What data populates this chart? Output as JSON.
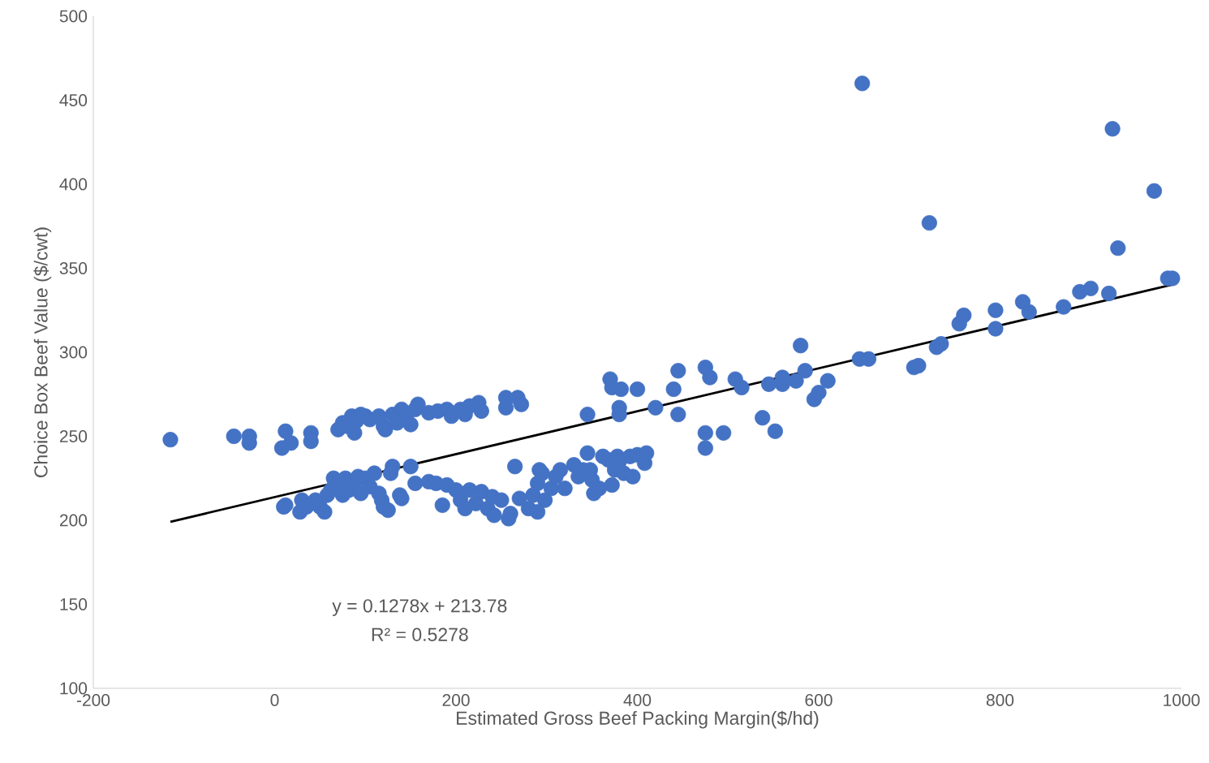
{
  "chart_data": {
    "type": "scatter",
    "xlabel": "Estimated Gross Beef Packing Margin($/hd)",
    "ylabel": "Choice Box Beef Value ($/cwt)",
    "annotations": [
      "y = 0.1278x + 213.78",
      "R² = 0.5278"
    ],
    "xlim": [
      -200,
      1000
    ],
    "xticks": [
      -200,
      0,
      200,
      400,
      600,
      800,
      1000
    ],
    "ylim": [
      100,
      500
    ],
    "yticks": [
      100,
      150,
      200,
      250,
      300,
      350,
      400,
      450,
      500
    ],
    "grid": false,
    "series": [
      {
        "color": "#4472c4",
        "marker": "circle",
        "x": [
          -115,
          -45,
          -28,
          -28,
          8,
          12,
          18,
          40,
          40,
          70,
          75,
          80,
          85,
          88,
          90,
          95,
          100,
          105,
          115,
          120,
          122,
          130,
          135,
          140,
          145,
          150,
          155,
          158,
          170,
          180,
          190,
          195,
          205,
          210,
          215,
          225,
          228,
          255,
          255,
          268,
          272,
          10,
          12,
          28,
          30,
          35,
          45,
          50,
          55,
          58,
          62,
          65,
          70,
          75,
          78,
          82,
          88,
          92,
          95,
          100,
          105,
          110,
          115,
          118,
          120,
          125,
          128,
          130,
          138,
          140,
          150,
          155,
          170,
          178,
          185,
          190,
          200,
          205,
          210,
          215,
          222,
          228,
          235,
          240,
          242,
          250,
          258,
          260,
          265,
          270,
          280,
          285,
          290,
          290,
          292,
          295,
          298,
          305,
          310,
          315,
          320,
          330,
          335,
          340,
          345,
          348,
          350,
          352,
          358,
          362,
          368,
          372,
          375,
          378,
          380,
          385,
          392,
          395,
          400,
          408,
          410,
          345,
          370,
          372,
          382,
          380,
          380,
          400,
          420,
          440,
          445,
          445,
          475,
          475,
          475,
          480,
          495,
          508,
          515,
          538,
          545,
          552,
          560,
          560,
          575,
          580,
          585,
          595,
          600,
          610,
          645,
          648,
          655,
          705,
          710,
          722,
          730,
          735,
          755,
          760,
          795,
          795,
          825,
          832,
          870,
          888,
          900,
          924,
          920,
          930,
          970,
          985,
          990
        ],
        "values": [
          248,
          250,
          250,
          246,
          243,
          253,
          246,
          252,
          247,
          254,
          258,
          256,
          262,
          252,
          259,
          263,
          262,
          260,
          262,
          256,
          254,
          263,
          258,
          266,
          262,
          257,
          266,
          269,
          264,
          265,
          266,
          262,
          266,
          263,
          268,
          270,
          265,
          273,
          267,
          273,
          269,
          208,
          209,
          205,
          212,
          208,
          212,
          208,
          205,
          215,
          218,
          225,
          222,
          215,
          225,
          218,
          222,
          226,
          216,
          225,
          220,
          228,
          216,
          212,
          208,
          206,
          228,
          232,
          215,
          213,
          232,
          222,
          223,
          222,
          209,
          221,
          218,
          212,
          207,
          218,
          210,
          217,
          207,
          214,
          203,
          212,
          201,
          204,
          232,
          213,
          207,
          215,
          205,
          222,
          230,
          228,
          212,
          219,
          226,
          230,
          219,
          233,
          226,
          230,
          240,
          230,
          224,
          216,
          219,
          238,
          236,
          221,
          230,
          238,
          235,
          228,
          238,
          226,
          239,
          234,
          240,
          263,
          284,
          279,
          278,
          267,
          263,
          278,
          267,
          278,
          289,
          263,
          291,
          252,
          243,
          285,
          252,
          284,
          279,
          261,
          281,
          253,
          281,
          285,
          283,
          304,
          289,
          272,
          276,
          283,
          296,
          460,
          296,
          291,
          292,
          377,
          303,
          305,
          317,
          322,
          325,
          314,
          330,
          324,
          327,
          336,
          338,
          433,
          335,
          362,
          396,
          344,
          344
        ]
      },
      {
        "type": "line",
        "color": "#000000",
        "marker": "none",
        "line_style": "solid",
        "x": [
          -115,
          990
        ],
        "values": [
          199.1,
          340.3
        ]
      }
    ]
  }
}
